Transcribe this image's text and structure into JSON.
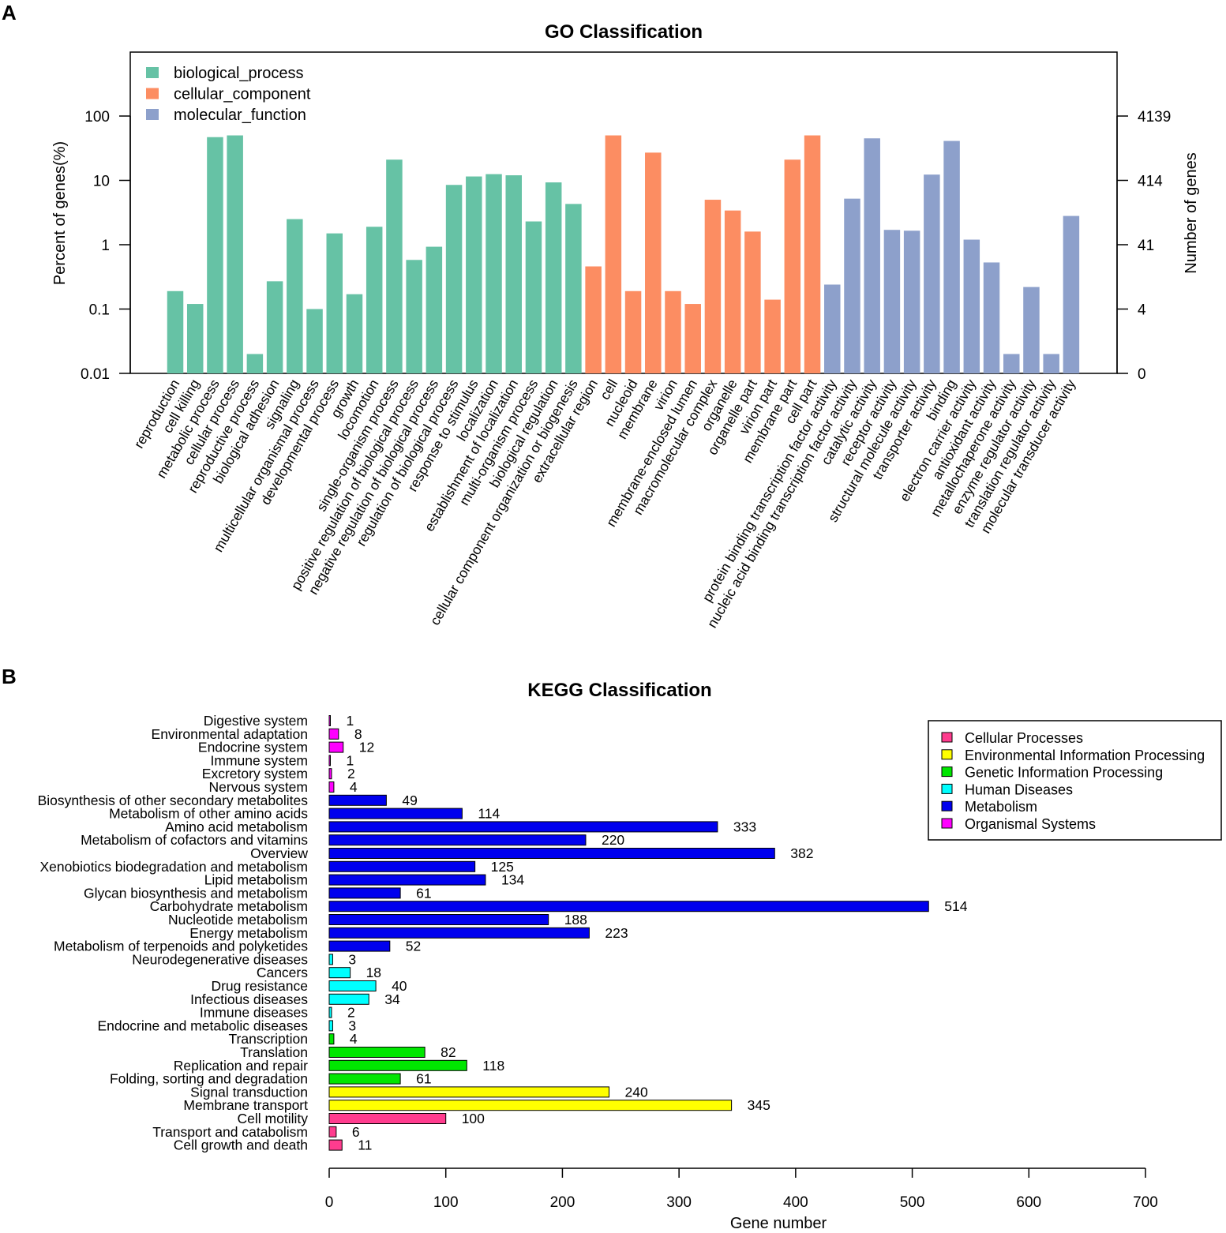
{
  "panels": {
    "a": "A",
    "b": "B"
  },
  "chart_data": [
    {
      "type": "bar",
      "title": "GO Classification",
      "ylabel": "Percent of genes(%)",
      "y2label": "Number of genes",
      "yscale": "log",
      "ylim": [
        0.01,
        1000
      ],
      "yticks": [
        "0.01",
        "0.1",
        "1",
        "10",
        "100"
      ],
      "y2ticks": [
        "0",
        "4",
        "41",
        "414",
        "4139"
      ],
      "series": [
        {
          "name": "biological_process",
          "color": "#66c2a5",
          "categories": [
            "reproduction",
            "cell killing",
            "metabolic process",
            "cellular process",
            "reproductive process",
            "biological adhesion",
            "signaling",
            "multicellular organismal process",
            "developmental process",
            "growth",
            "locomotion",
            "single-organism process",
            "positive regulation of biological process",
            "negative regulation of biological process",
            "regulation of biological process",
            "response to stimulus",
            "localization",
            "establishment of localization",
            "multi-organism process",
            "biological regulation",
            "cellular component organization or biogenesis"
          ],
          "values": [
            0.19,
            0.12,
            47,
            50,
            0.02,
            0.27,
            2.5,
            0.1,
            1.5,
            0.17,
            1.9,
            21,
            0.58,
            0.93,
            8.5,
            11.5,
            12.5,
            12,
            2.3,
            9.3,
            4.3
          ]
        },
        {
          "name": "cellular_component",
          "color": "#fc8d62",
          "categories": [
            "extracellular region",
            "cell",
            "nucleoid",
            "membrane",
            "virion",
            "membrane-enclosed lumen",
            "macromolecular complex",
            "organelle",
            "organelle part",
            "virion part",
            "membrane part",
            "cell part"
          ],
          "values": [
            0.46,
            50,
            0.19,
            27,
            0.19,
            0.12,
            5,
            3.4,
            1.6,
            0.14,
            21,
            50
          ]
        },
        {
          "name": "molecular_function",
          "color": "#8da0cb",
          "categories": [
            "protein binding transcription factor activity",
            "nucleic acid binding transcription factor activity",
            "catalytic activity",
            "receptor activity",
            "structural molecule activity",
            "transporter activity",
            "binding",
            "electron carrier activity",
            "antioxidant activity",
            "metallochaperone activity",
            "enzyme regulator activity",
            "translation regulator activity",
            "molecular transducer activity"
          ],
          "values": [
            0.24,
            5.2,
            45,
            1.7,
            1.65,
            12.3,
            41,
            1.2,
            0.53,
            0.02,
            0.22,
            0.02,
            2.8
          ]
        }
      ]
    },
    {
      "type": "bar",
      "orientation": "horizontal",
      "title": "KEGG Classification",
      "xlabel": "Gene number",
      "xlim": [
        0,
        700
      ],
      "xticks": [
        "0",
        "100",
        "200",
        "300",
        "400",
        "500",
        "600",
        "700"
      ],
      "legend": [
        {
          "name": "Cellular Processes",
          "color": "#ff3c8e"
        },
        {
          "name": "Environmental Information Processing",
          "color": "#ffff00"
        },
        {
          "name": "Genetic Information Processing",
          "color": "#00e600"
        },
        {
          "name": "Human Diseases",
          "color": "#00ffff"
        },
        {
          "name": "Metabolism",
          "color": "#0000ee"
        },
        {
          "name": "Organismal Systems",
          "color": "#ff00ff"
        }
      ],
      "bars": [
        {
          "label": "Digestive system",
          "value": 1,
          "group": "Organismal Systems"
        },
        {
          "label": "Environmental adaptation",
          "value": 8,
          "group": "Organismal Systems"
        },
        {
          "label": "Endocrine system",
          "value": 12,
          "group": "Organismal Systems"
        },
        {
          "label": "Immune system",
          "value": 1,
          "group": "Organismal Systems"
        },
        {
          "label": "Excretory system",
          "value": 2,
          "group": "Organismal Systems"
        },
        {
          "label": "Nervous system",
          "value": 4,
          "group": "Organismal Systems"
        },
        {
          "label": "Biosynthesis of other secondary metabolites",
          "value": 49,
          "group": "Metabolism"
        },
        {
          "label": "Metabolism of other amino acids",
          "value": 114,
          "group": "Metabolism"
        },
        {
          "label": "Amino acid metabolism",
          "value": 333,
          "group": "Metabolism"
        },
        {
          "label": "Metabolism of cofactors and vitamins",
          "value": 220,
          "group": "Metabolism"
        },
        {
          "label": "Overview",
          "value": 382,
          "group": "Metabolism"
        },
        {
          "label": "Xenobiotics biodegradation and metabolism",
          "value": 125,
          "group": "Metabolism"
        },
        {
          "label": "Lipid metabolism",
          "value": 134,
          "group": "Metabolism"
        },
        {
          "label": "Glycan biosynthesis and metabolism",
          "value": 61,
          "group": "Metabolism"
        },
        {
          "label": "Carbohydrate metabolism",
          "value": 514,
          "group": "Metabolism"
        },
        {
          "label": "Nucleotide metabolism",
          "value": 188,
          "group": "Metabolism"
        },
        {
          "label": "Energy metabolism",
          "value": 223,
          "group": "Metabolism"
        },
        {
          "label": "Metabolism of terpenoids and polyketides",
          "value": 52,
          "group": "Metabolism"
        },
        {
          "label": "Neurodegenerative diseases",
          "value": 3,
          "group": "Human Diseases"
        },
        {
          "label": "Cancers",
          "value": 18,
          "group": "Human Diseases"
        },
        {
          "label": "Drug resistance",
          "value": 40,
          "group": "Human Diseases"
        },
        {
          "label": "Infectious diseases",
          "value": 34,
          "group": "Human Diseases"
        },
        {
          "label": "Immune diseases",
          "value": 2,
          "group": "Human Diseases"
        },
        {
          "label": "Endocrine and metabolic diseases",
          "value": 3,
          "group": "Human Diseases"
        },
        {
          "label": "Transcription",
          "value": 4,
          "group": "Genetic Information Processing"
        },
        {
          "label": "Translation",
          "value": 82,
          "group": "Genetic Information Processing"
        },
        {
          "label": "Replication and repair",
          "value": 118,
          "group": "Genetic Information Processing"
        },
        {
          "label": "Folding, sorting and degradation",
          "value": 61,
          "group": "Genetic Information Processing"
        },
        {
          "label": "Signal transduction",
          "value": 240,
          "group": "Environmental Information Processing"
        },
        {
          "label": "Membrane transport",
          "value": 345,
          "group": "Environmental Information Processing"
        },
        {
          "label": "Cell motility",
          "value": 100,
          "group": "Cellular Processes"
        },
        {
          "label": "Transport and catabolism",
          "value": 6,
          "group": "Cellular Processes"
        },
        {
          "label": "Cell growth and death",
          "value": 11,
          "group": "Cellular Processes"
        }
      ]
    }
  ]
}
